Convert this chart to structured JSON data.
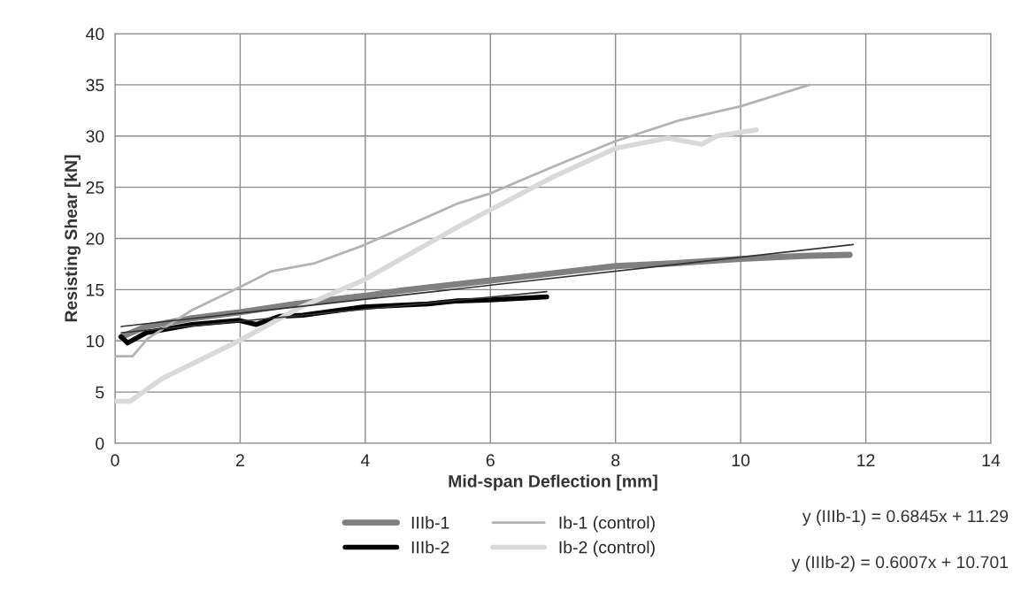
{
  "chart_data": {
    "type": "line",
    "xlabel": "Mid-span Deflection [mm]",
    "ylabel": "Resisting Shear [kN]",
    "xlim": [
      0,
      14
    ],
    "xticks": [
      0,
      2,
      4,
      6,
      8,
      10,
      12,
      14
    ],
    "ylim": [
      0,
      40
    ],
    "yticks": [
      0,
      5,
      10,
      15,
      20,
      25,
      30,
      35,
      40
    ],
    "grid": true,
    "legend": "bottom",
    "line_style": "solid",
    "series": [
      {
        "name": "IIIb-1",
        "color": "#808080",
        "x": [
          0.1,
          0.5,
          1.23,
          2.0,
          2.87,
          4.0,
          4.57,
          5.0,
          6.0,
          7.0,
          8.0,
          9.0,
          10.0,
          11.0,
          11.74
        ],
        "values": [
          10.4,
          11.4,
          12.2,
          12.8,
          13.6,
          14.4,
          14.9,
          15.2,
          15.9,
          16.6,
          17.3,
          17.6,
          18.0,
          18.3,
          18.4
        ]
      },
      {
        "name": "IIIb-2",
        "color": "#000000",
        "x": [
          0.1,
          0.2,
          0.5,
          1.23,
          1.98,
          2.26,
          2.64,
          3.0,
          3.96,
          5.0,
          5.47,
          6.0,
          6.9
        ],
        "values": [
          10.4,
          9.8,
          10.8,
          11.6,
          12.0,
          11.6,
          12.4,
          12.5,
          13.3,
          13.6,
          13.9,
          14.0,
          14.3
        ]
      },
      {
        "name": "Ib-1 (control)",
        "color": "#b3b3b3",
        "x": [
          0.0,
          0.28,
          0.52,
          1.23,
          1.98,
          2.5,
          3.2,
          3.96,
          5.47,
          6.0,
          7.0,
          8.0,
          9.0,
          10.0,
          11.1
        ],
        "values": [
          8.5,
          8.5,
          10.2,
          13.0,
          15.2,
          16.8,
          17.6,
          19.3,
          23.4,
          24.4,
          27.0,
          29.5,
          31.5,
          32.9,
          35.0
        ]
      },
      {
        "name": "Ib-2 (control)",
        "color": "#d9d9d9",
        "x": [
          0.0,
          0.24,
          0.75,
          1.98,
          2.97,
          3.96,
          5.47,
          6.0,
          7.0,
          8.0,
          8.84,
          9.38,
          9.62,
          10.25
        ],
        "values": [
          4.1,
          4.1,
          6.3,
          10.0,
          13.3,
          15.9,
          21.1,
          22.8,
          26.0,
          28.8,
          29.8,
          29.2,
          30.0,
          30.6
        ]
      },
      {
        "type": "line",
        "color": "#333333",
        "x": [
          0.1,
          11.8
        ],
        "values": [
          11.4,
          19.4
        ]
      },
      {
        "type": "line",
        "color": "#333333",
        "x": [
          0.1,
          6.9
        ],
        "values": [
          10.8,
          14.8
        ]
      }
    ],
    "annotations": [
      "y (IIIb-1) = 0.6845x + 11.29",
      "y (IIIb-2) = 0.6007x + 10.701"
    ]
  }
}
